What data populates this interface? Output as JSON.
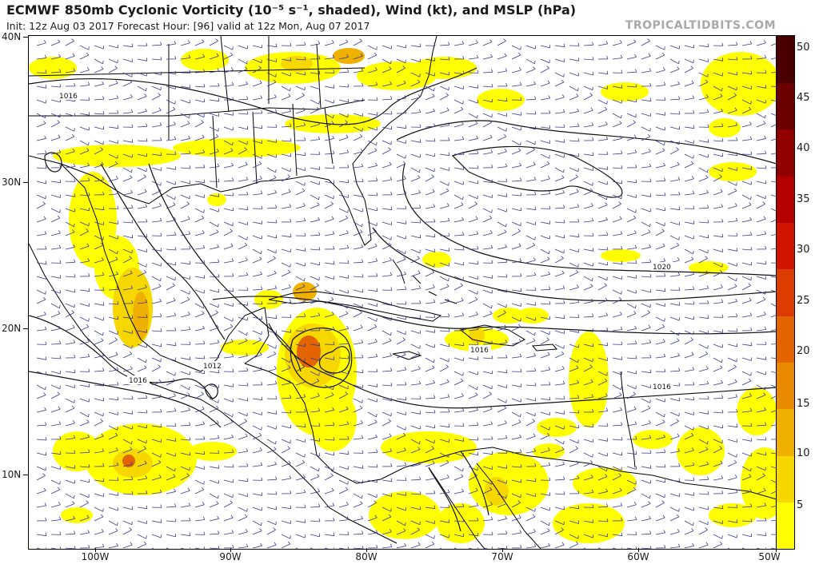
{
  "header": {
    "title": "ECMWF 850mb Cyclonic Vorticity (10⁻⁵ s⁻¹, shaded), Wind (kt), and MSLP (hPa)",
    "subtitle": "Init: 12z Aug 03 2017   Forecast Hour: [96]   valid at 12z Mon, Aug 07 2017",
    "credit": "TROPICALTIDBITS.COM"
  },
  "map": {
    "lat_labels": [
      "40N",
      "30N",
      "20N",
      "10N"
    ],
    "lon_labels": [
      "100W",
      "90W",
      "80W",
      "70W",
      "60W",
      "50W"
    ],
    "isobar_labels": [
      "1016",
      "1020",
      "1012",
      "1016",
      "1016",
      "1016"
    ]
  },
  "colorbar": {
    "labels": [
      "50",
      "45",
      "40",
      "35",
      "30",
      "25",
      "20",
      "15",
      "10",
      "5"
    ],
    "colors": [
      "#fefe00",
      "#f6d800",
      "#f0b000",
      "#ea8a00",
      "#e46400",
      "#dd3c00",
      "#d01400",
      "#b50000",
      "#900000",
      "#6a0000",
      "#4a0000"
    ]
  }
}
